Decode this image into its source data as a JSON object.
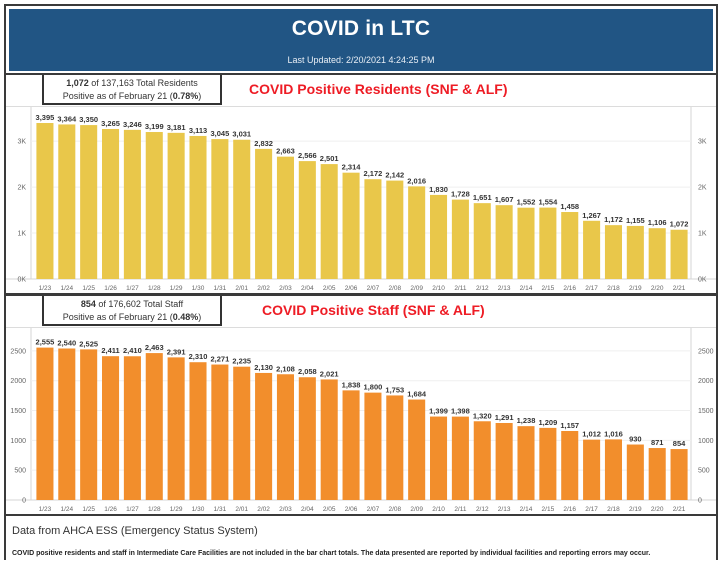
{
  "header": {
    "title": "COVID in LTC",
    "last_updated": "Last Updated: 2/20/2021 4:24:25 PM",
    "background_color": "#215584"
  },
  "residents": {
    "summary_count": "1,072",
    "summary_mid": " of 137,163 Total Residents",
    "summary_line2_prefix": "Positive as of February 21 (",
    "summary_pct": "0.78%",
    "summary_line2_suffix": ")"
  },
  "staff": {
    "summary_count": "854",
    "summary_mid": " of 176,602 Total Staff",
    "summary_line2_prefix": "Positive as of February 21 (",
    "summary_pct": "0.48%",
    "summary_line2_suffix": ")"
  },
  "footer": {
    "source": "Data from AHCA ESS (Emergency Status System)",
    "note": "COVID positive residents and staff in Intermediate Care Facilities are not included in the bar chart totals. The data presented are reported by individual facilities and reporting errors may occur."
  },
  "chart_data": [
    {
      "type": "bar",
      "title": "COVID Positive Residents (SNF & ALF)",
      "xlabel": "",
      "ylabel": "",
      "color": "#e9c74a",
      "title_color": "#ee1c25",
      "categories": [
        "1/23",
        "1/24",
        "1/25",
        "1/26",
        "1/27",
        "1/28",
        "1/29",
        "1/30",
        "1/31",
        "2/01",
        "2/02",
        "2/03",
        "2/04",
        "2/05",
        "2/06",
        "2/07",
        "2/08",
        "2/09",
        "2/10",
        "2/11",
        "2/12",
        "2/13",
        "2/14",
        "2/15",
        "2/16",
        "2/17",
        "2/18",
        "2/19",
        "2/20",
        "2/21"
      ],
      "values": [
        3395,
        3364,
        3350,
        3265,
        3246,
        3199,
        3181,
        3113,
        3045,
        3031,
        2832,
        2663,
        2566,
        2501,
        2314,
        2172,
        2142,
        2016,
        1830,
        1728,
        1651,
        1607,
        1552,
        1554,
        1458,
        1267,
        1172,
        1155,
        1106,
        1072
      ],
      "data_labels": [
        "3,395",
        "3,364",
        "3,350",
        "3,265",
        "3,246",
        "3,199",
        "3,181",
        "3,113",
        "3,045",
        "3,031",
        "2,832",
        "2,663",
        "2,566",
        "2,501",
        "2,314",
        "2,172",
        "2,142",
        "2,016",
        "1,830",
        "1,728",
        "1,651",
        "1,607",
        "1,552",
        "1,554",
        "1,458",
        "1,267",
        "1,172",
        "1,155",
        "1,106",
        "1,072"
      ],
      "yticks": [
        0,
        1000,
        2000,
        3000
      ],
      "ytick_labels": [
        "0K",
        "1K",
        "2K",
        "3K"
      ],
      "ylim": [
        0,
        3700
      ],
      "grid": true,
      "axes": "left-and-right"
    },
    {
      "type": "bar",
      "title": "COVID Positive Staff  (SNF & ALF)",
      "xlabel": "",
      "ylabel": "",
      "color": "#f28e2c",
      "title_color": "#ee1c25",
      "categories": [
        "1/23",
        "1/24",
        "1/25",
        "1/26",
        "1/27",
        "1/28",
        "1/29",
        "1/30",
        "1/31",
        "2/01",
        "2/02",
        "2/03",
        "2/04",
        "2/05",
        "2/06",
        "2/07",
        "2/08",
        "2/09",
        "2/10",
        "2/11",
        "2/12",
        "2/13",
        "2/14",
        "2/15",
        "2/16",
        "2/17",
        "2/18",
        "2/19",
        "2/20",
        "2/21"
      ],
      "values": [
        2555,
        2540,
        2525,
        2411,
        2410,
        2463,
        2391,
        2310,
        2271,
        2235,
        2130,
        2108,
        2058,
        2021,
        1838,
        1800,
        1753,
        1684,
        1399,
        1398,
        1320,
        1291,
        1238,
        1209,
        1157,
        1012,
        1016,
        930,
        871,
        854
      ],
      "data_labels": [
        "2,555",
        "2,540",
        "2,525",
        "2,411",
        "2,410",
        "2,463",
        "2,391",
        "2,310",
        "2,271",
        "2,235",
        "2,130",
        "2,108",
        "2,058",
        "2,021",
        "1,838",
        "1,800",
        "1,753",
        "1,684",
        "1,399",
        "1,398",
        "1,320",
        "1,291",
        "1,238",
        "1,209",
        "1,157",
        "1,012",
        "1,016",
        "930",
        "871",
        "854"
      ],
      "yticks": [
        0,
        500,
        1000,
        1500,
        2000,
        2500
      ],
      "ytick_labels": [
        "0",
        "500",
        "1000",
        "1500",
        "2000",
        "2500"
      ],
      "ylim": [
        0,
        2850
      ],
      "grid": true,
      "axes": "left-and-right"
    }
  ]
}
